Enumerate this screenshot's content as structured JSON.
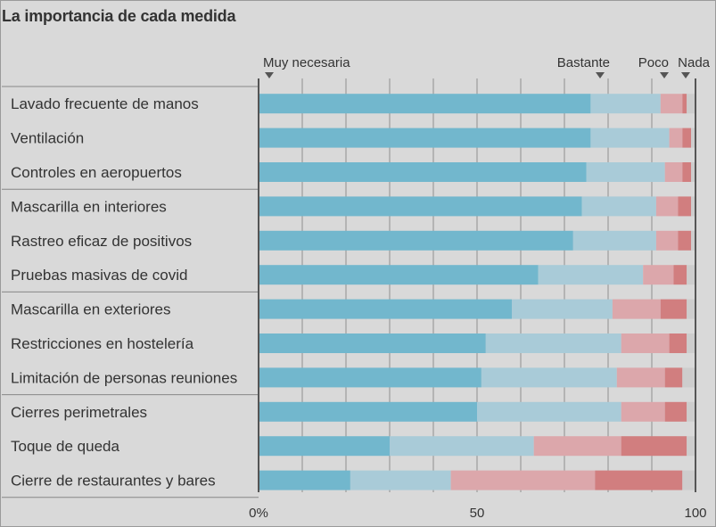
{
  "title": "La importancia de cada medida",
  "chart_data": {
    "type": "bar",
    "orientation": "horizontal",
    "stacked": true,
    "title": "La importancia de cada medida",
    "xlim": [
      0,
      100
    ],
    "xticks": [
      "0%",
      "50",
      "100"
    ],
    "grid": true,
    "legend_position": "top",
    "categories": [
      "Lavado frecuente de manos",
      "Ventilación",
      "Controles en aeropuertos",
      "Mascarilla en interiores",
      "Rastreo eficaz de positivos",
      "Pruebas masivas de covid",
      "Mascarilla en exteriores",
      "Restricciones en hostelería",
      "Limitación de personas reuniones",
      "Cierres perimetrales",
      "Toque de queda",
      "Cierre de restaurantes y bares"
    ],
    "group_sizes": [
      3,
      3,
      3,
      3
    ],
    "series": [
      {
        "name": "Muy necesaria",
        "color": "#72b7cd",
        "values": [
          76,
          76,
          75,
          74,
          72,
          64,
          58,
          52,
          51,
          50,
          30,
          21
        ]
      },
      {
        "name": "Bastante",
        "color": "#a9cbd8",
        "values": [
          16,
          18,
          18,
          17,
          19,
          24,
          23,
          31,
          31,
          33,
          33,
          23
        ]
      },
      {
        "name": "Poco",
        "color": "#dca7ab",
        "values": [
          5,
          3,
          4,
          5,
          5,
          7,
          11,
          11,
          11,
          10,
          20,
          33
        ]
      },
      {
        "name": "Nada",
        "color": "#d17e7f",
        "values": [
          1,
          2,
          2,
          3,
          3,
          3,
          6,
          4,
          4,
          5,
          15,
          20
        ]
      },
      {
        "name": "",
        "color": "#cdcdcd",
        "values": [
          2,
          1,
          1,
          1,
          1,
          2,
          2,
          2,
          3,
          2,
          2,
          3
        ]
      }
    ]
  }
}
